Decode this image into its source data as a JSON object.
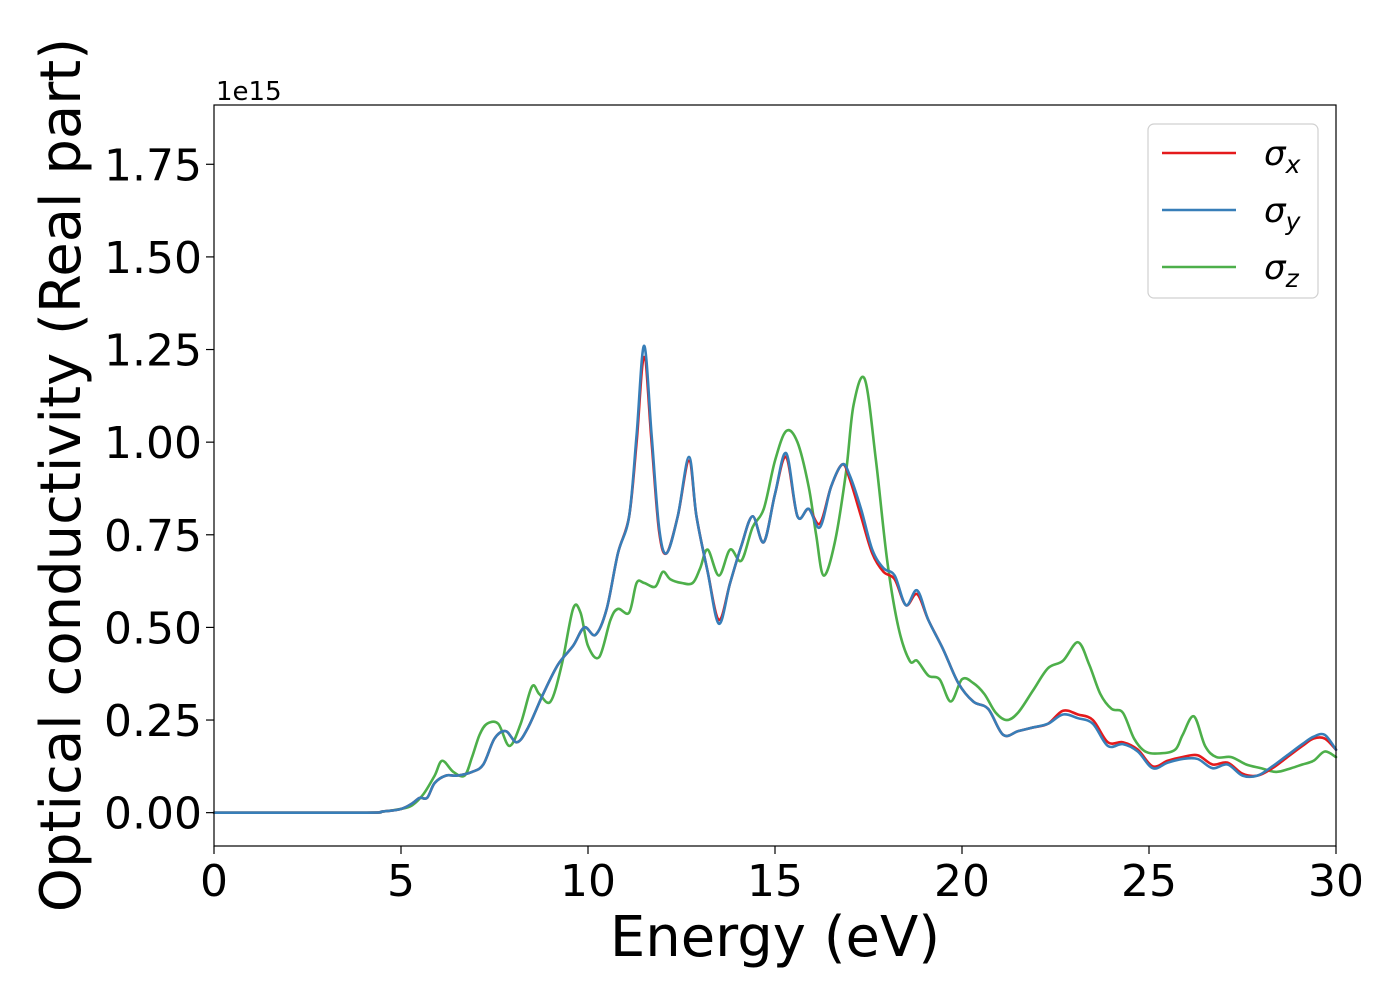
{
  "chart_data": {
    "type": "line",
    "xlabel": "Energy (eV)",
    "ylabel": "Optical conductivity (Real part)",
    "y_offset_text": "1e15",
    "xlim": [
      0,
      30
    ],
    "ylim": [
      -0.09,
      1.91
    ],
    "x_ticks": [
      0,
      5,
      10,
      15,
      20,
      25,
      30
    ],
    "x_tick_labels": [
      "0",
      "5",
      "10",
      "15",
      "20",
      "25",
      "30"
    ],
    "y_ticks": [
      0.0,
      0.25,
      0.5,
      0.75,
      1.0,
      1.25,
      1.5,
      1.75
    ],
    "y_tick_labels": [
      "0.00",
      "0.25",
      "0.50",
      "0.75",
      "1.00",
      "1.25",
      "1.50",
      "1.75"
    ],
    "grid": false,
    "legend_position": "top-right",
    "series": [
      {
        "name": "σx",
        "legend_base": "σ",
        "legend_sub": "x",
        "color": "#e41a1c",
        "x": [
          0,
          4,
          4.5,
          5,
          5.3,
          5.5,
          5.7,
          5.9,
          6.2,
          6.5,
          6.9,
          7.2,
          7.5,
          7.8,
          8.1,
          8.4,
          8.8,
          9.2,
          9.6,
          9.9,
          10.2,
          10.5,
          10.8,
          11.1,
          11.3,
          11.5,
          11.7,
          11.9,
          12.1,
          12.4,
          12.7,
          12.9,
          13.2,
          13.5,
          13.8,
          14.1,
          14.4,
          14.7,
          15.0,
          15.3,
          15.6,
          15.9,
          16.2,
          16.5,
          16.8,
          17.0,
          17.3,
          17.6,
          17.9,
          18.2,
          18.5,
          18.8,
          19.1,
          19.5,
          19.9,
          20.3,
          20.7,
          21.1,
          21.5,
          21.9,
          22.3,
          22.7,
          23.1,
          23.5,
          23.9,
          24.3,
          24.7,
          25.1,
          25.5,
          25.9,
          26.3,
          26.7,
          27.1,
          27.5,
          27.9,
          28.3,
          28.7,
          29.1,
          29.4,
          29.7,
          30.0
        ],
        "y": [
          0.0,
          0.0,
          0.003,
          0.01,
          0.025,
          0.04,
          0.04,
          0.08,
          0.1,
          0.1,
          0.11,
          0.13,
          0.2,
          0.22,
          0.19,
          0.23,
          0.32,
          0.4,
          0.45,
          0.5,
          0.48,
          0.55,
          0.7,
          0.8,
          1.0,
          1.23,
          1.0,
          0.76,
          0.7,
          0.8,
          0.95,
          0.8,
          0.65,
          0.52,
          0.62,
          0.72,
          0.8,
          0.73,
          0.86,
          0.96,
          0.8,
          0.82,
          0.78,
          0.88,
          0.94,
          0.9,
          0.8,
          0.7,
          0.65,
          0.63,
          0.56,
          0.59,
          0.52,
          0.44,
          0.35,
          0.3,
          0.28,
          0.21,
          0.22,
          0.23,
          0.24,
          0.275,
          0.265,
          0.25,
          0.19,
          0.19,
          0.17,
          0.125,
          0.14,
          0.15,
          0.155,
          0.13,
          0.135,
          0.105,
          0.1,
          0.12,
          0.15,
          0.18,
          0.2,
          0.2,
          0.17
        ]
      },
      {
        "name": "σy",
        "legend_base": "σ",
        "legend_sub": "y",
        "color": "#377eb8",
        "x": [
          0,
          4,
          4.5,
          5,
          5.3,
          5.5,
          5.7,
          5.9,
          6.2,
          6.5,
          6.9,
          7.2,
          7.5,
          7.8,
          8.1,
          8.4,
          8.8,
          9.2,
          9.6,
          9.9,
          10.2,
          10.5,
          10.8,
          11.1,
          11.3,
          11.5,
          11.7,
          11.9,
          12.1,
          12.4,
          12.7,
          12.9,
          13.2,
          13.5,
          13.8,
          14.1,
          14.4,
          14.7,
          15.0,
          15.3,
          15.6,
          15.9,
          16.2,
          16.5,
          16.8,
          17.0,
          17.3,
          17.6,
          17.9,
          18.2,
          18.5,
          18.8,
          19.1,
          19.5,
          19.9,
          20.3,
          20.7,
          21.1,
          21.5,
          21.9,
          22.3,
          22.7,
          23.1,
          23.5,
          23.9,
          24.3,
          24.7,
          25.1,
          25.5,
          25.9,
          26.3,
          26.7,
          27.1,
          27.5,
          27.9,
          28.3,
          28.7,
          29.1,
          29.4,
          29.7,
          30.0
        ],
        "y": [
          0.0,
          0.0,
          0.003,
          0.01,
          0.025,
          0.04,
          0.04,
          0.08,
          0.1,
          0.1,
          0.11,
          0.13,
          0.2,
          0.22,
          0.19,
          0.23,
          0.32,
          0.4,
          0.45,
          0.5,
          0.48,
          0.55,
          0.7,
          0.8,
          1.02,
          1.26,
          1.02,
          0.77,
          0.7,
          0.8,
          0.96,
          0.8,
          0.65,
          0.51,
          0.62,
          0.72,
          0.8,
          0.73,
          0.86,
          0.97,
          0.8,
          0.82,
          0.77,
          0.88,
          0.94,
          0.91,
          0.82,
          0.71,
          0.66,
          0.64,
          0.56,
          0.6,
          0.52,
          0.44,
          0.35,
          0.3,
          0.28,
          0.21,
          0.22,
          0.23,
          0.24,
          0.265,
          0.255,
          0.24,
          0.18,
          0.185,
          0.165,
          0.12,
          0.135,
          0.145,
          0.145,
          0.12,
          0.13,
          0.1,
          0.1,
          0.125,
          0.155,
          0.185,
          0.205,
          0.21,
          0.17
        ]
      },
      {
        "name": "σz",
        "legend_base": "σ",
        "legend_sub": "z",
        "color": "#4daf4a",
        "x": [
          0,
          4,
          4.5,
          5,
          5.3,
          5.6,
          5.9,
          6.1,
          6.4,
          6.7,
          6.9,
          7.1,
          7.3,
          7.6,
          7.9,
          8.2,
          8.5,
          8.7,
          9.0,
          9.3,
          9.6,
          9.8,
          10.0,
          10.3,
          10.6,
          10.8,
          11.1,
          11.3,
          11.5,
          11.8,
          12.0,
          12.2,
          12.5,
          12.8,
          13.0,
          13.2,
          13.5,
          13.8,
          14.1,
          14.4,
          14.7,
          15.0,
          15.3,
          15.6,
          15.9,
          16.1,
          16.3,
          16.6,
          16.9,
          17.1,
          17.4,
          17.7,
          18.0,
          18.3,
          18.6,
          18.8,
          19.1,
          19.4,
          19.7,
          20.0,
          20.3,
          20.6,
          20.9,
          21.2,
          21.5,
          21.9,
          22.3,
          22.7,
          23.1,
          23.4,
          23.7,
          24.0,
          24.3,
          24.6,
          24.9,
          25.3,
          25.7,
          25.9,
          26.2,
          26.5,
          26.8,
          27.2,
          27.6,
          28.0,
          28.4,
          28.8,
          29.1,
          29.4,
          29.7,
          30.0
        ],
        "y": [
          0.0,
          0.0,
          0.003,
          0.01,
          0.02,
          0.05,
          0.1,
          0.14,
          0.11,
          0.1,
          0.15,
          0.21,
          0.24,
          0.24,
          0.18,
          0.24,
          0.34,
          0.32,
          0.3,
          0.4,
          0.55,
          0.54,
          0.45,
          0.42,
          0.52,
          0.55,
          0.54,
          0.62,
          0.62,
          0.61,
          0.65,
          0.63,
          0.62,
          0.62,
          0.66,
          0.71,
          0.64,
          0.71,
          0.68,
          0.77,
          0.82,
          0.95,
          1.03,
          1.0,
          0.88,
          0.75,
          0.64,
          0.73,
          0.92,
          1.1,
          1.17,
          0.95,
          0.68,
          0.5,
          0.41,
          0.41,
          0.37,
          0.36,
          0.3,
          0.36,
          0.35,
          0.32,
          0.27,
          0.25,
          0.27,
          0.33,
          0.39,
          0.41,
          0.46,
          0.4,
          0.32,
          0.28,
          0.27,
          0.2,
          0.165,
          0.16,
          0.17,
          0.21,
          0.26,
          0.18,
          0.15,
          0.15,
          0.13,
          0.12,
          0.11,
          0.12,
          0.13,
          0.14,
          0.165,
          0.15
        ]
      }
    ]
  }
}
